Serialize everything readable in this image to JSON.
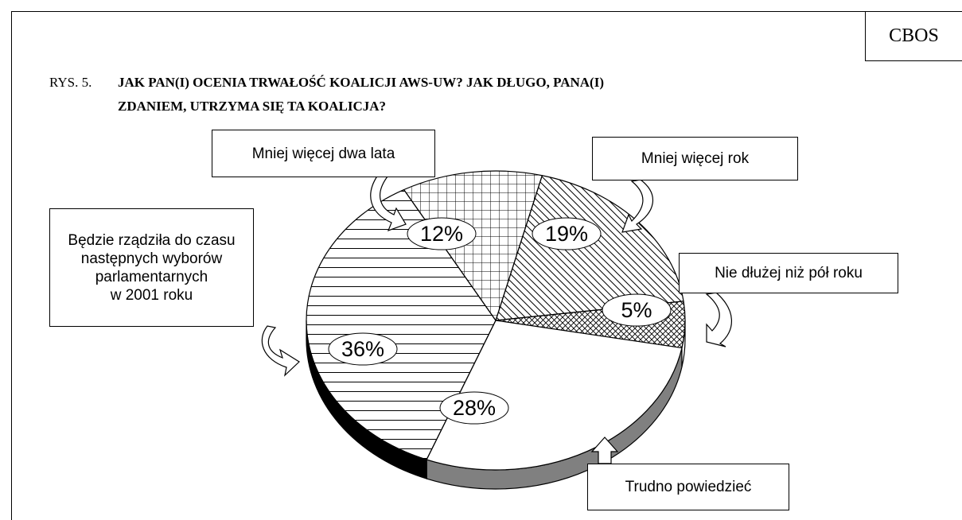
{
  "chart_data": {
    "type": "pie",
    "source": "CBOS",
    "figure_label": "RYS. 5.",
    "title": "JAK PAN(I) OCENIA TRWAŁOŚĆ KOALICJI AWS-UW? JAK DŁUGO, PANA(I)\nZDANIEM, UTRZYMA SIĘ TA KOALICJA?",
    "categories": [
      "Mniej więcej dwa lata",
      "Mniej więcej rok",
      "Nie dłużej niż pół roku",
      "Trudno powiedzieć",
      "Będzie rządziła do czasu\nnastępnych wyborów\nparlamentarnych\nw 2001 roku"
    ],
    "values": [
      12,
      19,
      5,
      28,
      36
    ],
    "value_labels": [
      "12%",
      "19%",
      "5%",
      "28%",
      "36%"
    ],
    "side_colors": [
      "#ffffff",
      "#ffffff",
      "#ffffff",
      "#808080",
      "#000000"
    ]
  }
}
